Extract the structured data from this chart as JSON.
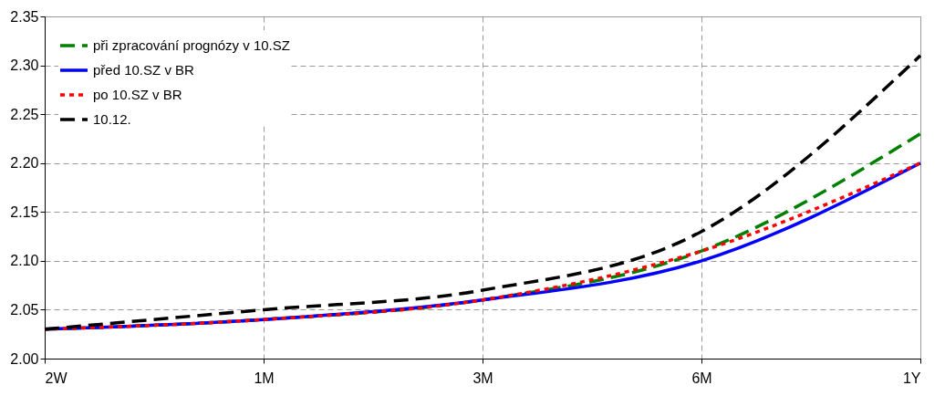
{
  "chart_data": {
    "type": "line",
    "categories": [
      "2W",
      "1M",
      "3M",
      "6M",
      "1Y"
    ],
    "series": [
      {
        "name": "při zpracování prognózy v 10.SZ",
        "color": "#008000",
        "line_style": "dashed",
        "values": [
          2.03,
          2.04,
          2.06,
          2.11,
          2.23
        ]
      },
      {
        "name": "před 10.SZ v BR",
        "color": "#0000ff",
        "line_style": "solid",
        "values": [
          2.03,
          2.04,
          2.06,
          2.1,
          2.2
        ]
      },
      {
        "name": "po 10.SZ v BR",
        "color": "#ff0000",
        "line_style": "dotted",
        "values": [
          2.03,
          2.04,
          2.06,
          2.11,
          2.2
        ]
      },
      {
        "name": "10.12.",
        "color": "#000000",
        "line_style": "dashed",
        "values": [
          2.03,
          2.05,
          2.07,
          2.13,
          2.31
        ]
      }
    ],
    "ylim": [
      2.0,
      2.35
    ],
    "yticks": [
      {
        "value": 2.0,
        "label": "2.00"
      },
      {
        "value": 2.05,
        "label": "2.05"
      },
      {
        "value": 2.1,
        "label": "2.10"
      },
      {
        "value": 2.15,
        "label": "2.15"
      },
      {
        "value": 2.2,
        "label": "2.20"
      },
      {
        "value": 2.25,
        "label": "2.25"
      },
      {
        "value": 2.3,
        "label": "2.30"
      },
      {
        "value": 2.35,
        "label": "2.35"
      }
    ],
    "grid": true,
    "legend": "top left",
    "marker": "none"
  }
}
